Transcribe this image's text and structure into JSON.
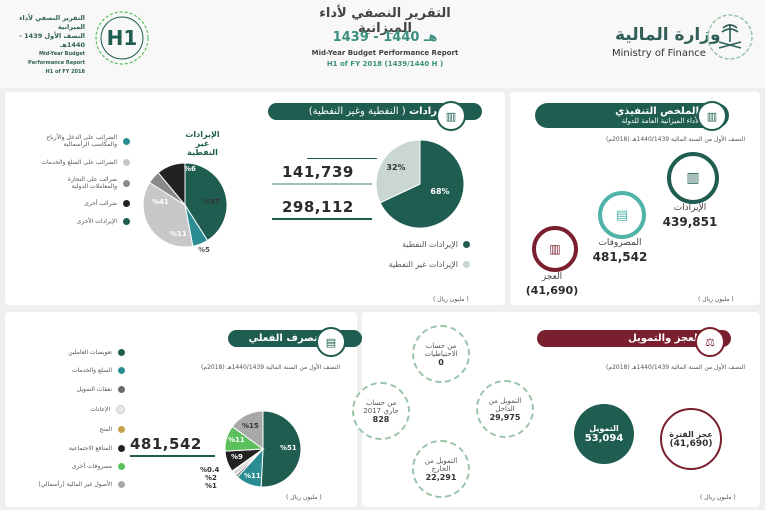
{
  "header": {
    "report_title_ar": "التقرير النصفي لأداء الميزانية",
    "report_year_ar": "1439 - 1440 هـ",
    "report_title_en": "Mid-Year Budget Performance Report",
    "report_subtitle_en": "H1 of FY 2018 (1439/1440 H )",
    "ministry_ar": "وزارة المالية",
    "ministry_en": "Ministry of Finance",
    "logo_text_ar_1": "التقرير النصفي لأداء الميزانية",
    "logo_text_ar_2": "النصف الأول 1439 - 1440هـ",
    "logo_text_en_1": "Mid-Year Budget Performance Report",
    "logo_text_en_2": "H1 of FY 2018"
  },
  "executive_summary": {
    "title": "الملخص التنفيذي",
    "subtitle": "لأداء الميزانية العامة للدولة",
    "period": "النصف الأول من السنة المالية 1440/1439هـ (2018م)",
    "revenues_label": "الإيرادات",
    "revenues_value": "439,851",
    "expenditures_label": "المصروفات",
    "expenditures_value": "481,542",
    "deficit_label": "العجز",
    "deficit_value": "(41,690)",
    "unit": "( مليون ريال )"
  },
  "revenues": {
    "title": "الإيرادات",
    "title_sub": "( النفطية وغير النفطية)",
    "non_oil_value": "141,739",
    "oil_value": "298,112",
    "pie_oil_pct": "68%",
    "pie_nonoil_pct": "32%",
    "legend_oil": "الإيرادات النفطية",
    "legend_nonoil": "الإيرادات غير النفطية",
    "nonoil_heading_1": "الإيرادات",
    "nonoil_heading_2": "غير النفطية",
    "nonoil_legend": [
      "الضرائب على الدخل والأرباح والمكاسب الرأسمالية",
      "الضرائب على السلع والخدمات",
      "ضرائب على التجارة والمعاملات الدولية",
      "ضرائب أخرى",
      "الإيرادات الأخرى"
    ],
    "nonoil_pcts": [
      "%6",
      "%37",
      "%5",
      "%11",
      "%41"
    ],
    "unit": "( مليون ريال )"
  },
  "chart_data": [
    {
      "type": "pie",
      "title": "",
      "categories": [
        "الإيرادات النفطية",
        "الإيرادات غير النفطية"
      ],
      "values": [
        68,
        32
      ],
      "colors": [
        "#1f5d50",
        "#c9d6d1"
      ]
    },
    {
      "type": "pie",
      "title": "",
      "categories": [
        "الإيرادات الأخرى",
        "الضرائب على الدخل والأرباح والمكاسب الرأسمالية",
        "الضرائب على السلع والخدمات",
        "ضرائب على التجارة والمعاملات الدولية",
        "ضرائب أخرى"
      ],
      "values": [
        41,
        6,
        37,
        5,
        11
      ],
      "colors": [
        "#1f5d50",
        "#2c8c94",
        "#c8c8c8",
        "#8a8a8a",
        "#222222"
      ]
    },
    {
      "type": "pie",
      "title": "",
      "categories": [
        "تعويضات العاملين",
        "السلع والخدمات",
        "نفقات التمويل",
        "الإعانات",
        "المنح",
        "المنافع الاجتماعية",
        "مصروفات أخرى",
        "الأصول غير المالية (رأسمالي)"
      ],
      "values": [
        51,
        11,
        1,
        2,
        0.4,
        9,
        11,
        15
      ],
      "colors": [
        "#1f5d50",
        "#2c8c94",
        "#6a6a6a",
        "#d8d8d8",
        "#c8a050",
        "#222222",
        "#5bbf5b",
        "#a8a8a8"
      ]
    }
  ],
  "expenditure": {
    "title": "المنصرف الفعلي",
    "period": "النصف الأول من السنة المالية 1440/1439هـ (2018م)",
    "total": "481,542",
    "legend": [
      "تعويضات العاملين",
      "السلع والخدمات",
      "نفقات التمويل",
      "الإعانات",
      "المنح",
      "المنافع الاجتماعية",
      "مصروفات أخرى",
      "الأصول غير المالية (رأسمالي)"
    ],
    "pcts": [
      "%51",
      "%11",
      "%1",
      "%2",
      "%0.4",
      "%9",
      "%11",
      "%15"
    ],
    "unit": "( مليون ريال )"
  },
  "deficit": {
    "title": "العجز والتمويل",
    "period": "النصف الأول من السنة المالية 1440/1439هـ (2018م)",
    "period_deficit_label": "عجز الفترة",
    "period_deficit_value": "(41,690)",
    "financing_label": "التمويل",
    "financing_value": "53,094",
    "reserves_label": "من حساب الاحتياطيات",
    "reserves_value": "0",
    "domestic_label": "التمويل من الداخل",
    "domestic_value": "29,975",
    "external_label": "التمويل من الخارج",
    "external_value": "22,291",
    "current_label": "من حساب جاري 2017",
    "current_value": "828",
    "unit": "( مليون ريال )"
  }
}
